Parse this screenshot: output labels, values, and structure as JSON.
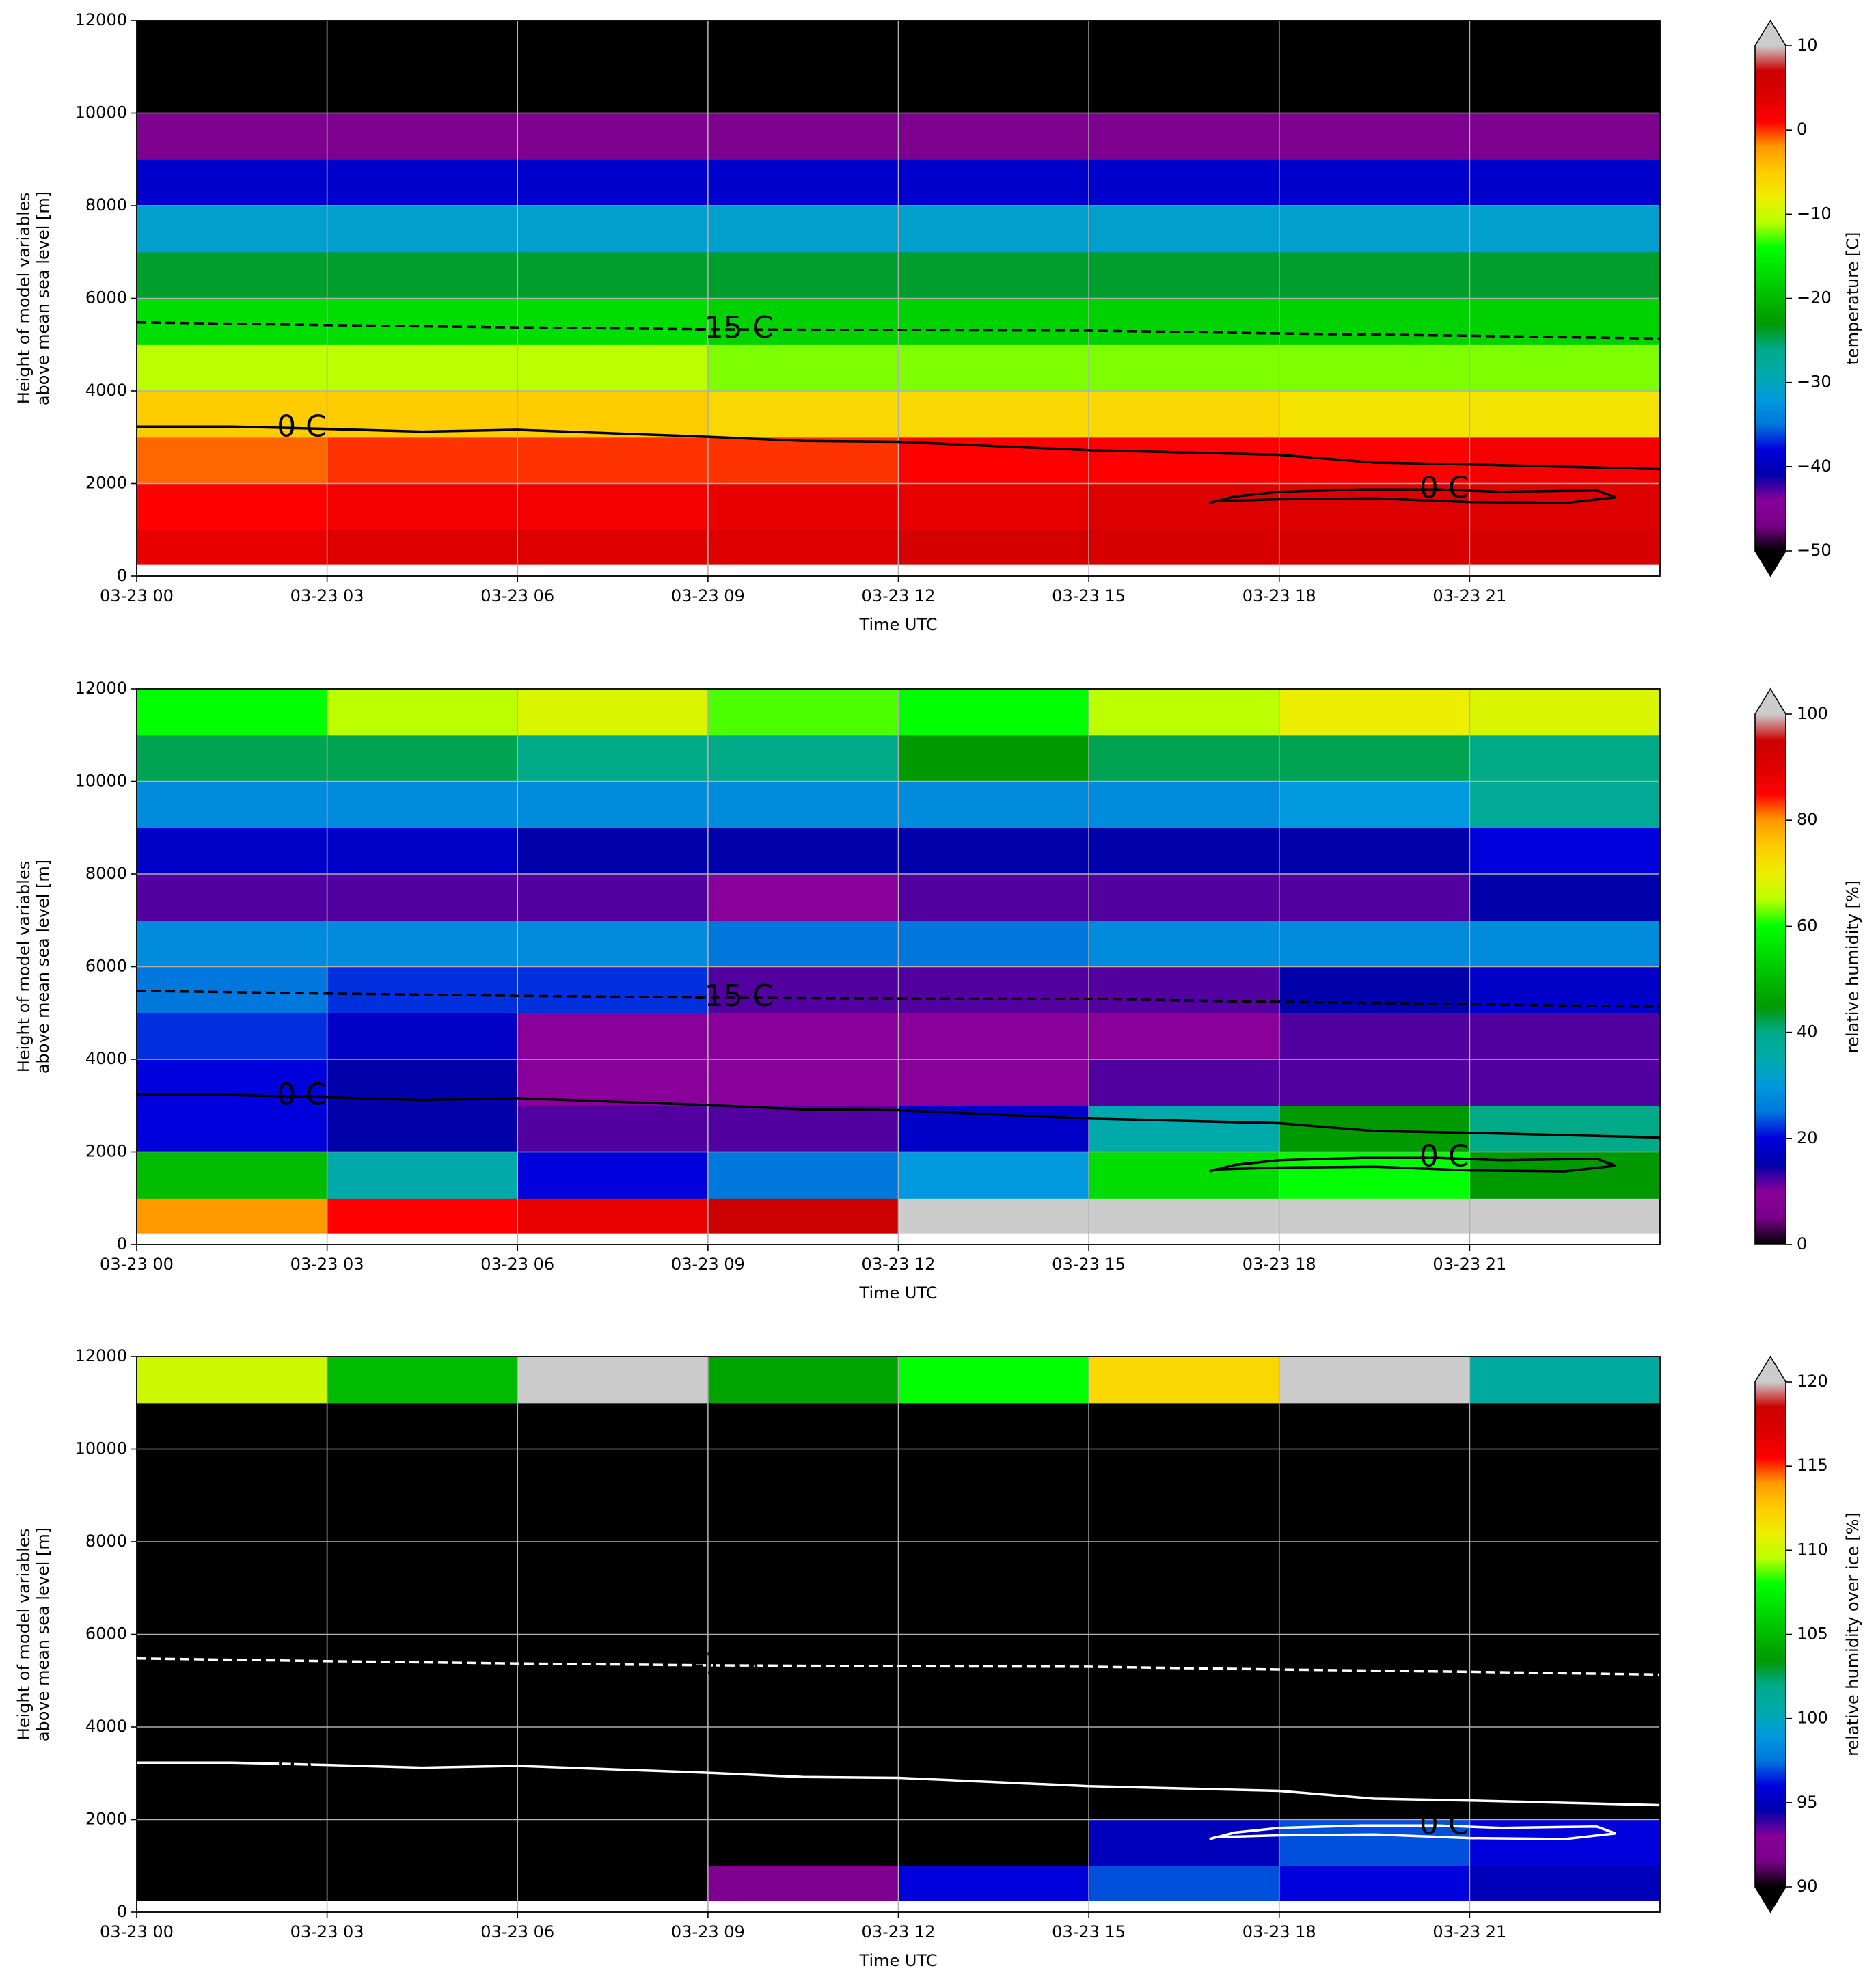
{
  "chart_data": [
    {
      "type": "heatmap",
      "xlabel": "Time UTC",
      "ylabel": [
        "Height of model variables",
        "above mean sea level [m]"
      ],
      "xlim": [
        0,
        24
      ],
      "xticks": [
        {
          "value": 0,
          "label": "03-23 00"
        },
        {
          "value": 3,
          "label": "03-23 03"
        },
        {
          "value": 6,
          "label": "03-23 06"
        },
        {
          "value": 9,
          "label": "03-23 09"
        },
        {
          "value": 12,
          "label": "03-23 12"
        },
        {
          "value": 15,
          "label": "03-23 15"
        },
        {
          "value": 18,
          "label": "03-23 18"
        },
        {
          "value": 21,
          "label": "03-23 21"
        }
      ],
      "ylim": [
        0,
        12000
      ],
      "yticks": [
        0,
        2000,
        4000,
        6000,
        8000,
        10000,
        12000
      ],
      "grid": true,
      "x_bins": [
        0,
        3,
        6,
        9,
        12,
        15,
        18,
        21,
        24
      ],
      "y_bins": [
        250,
        1000,
        2000,
        3000,
        4000,
        5000,
        6000,
        7000,
        8000,
        9000,
        10000,
        11000,
        12000
      ],
      "values": [
        [
          3,
          4,
          4,
          4,
          5,
          5,
          5,
          5
        ],
        [
          1,
          2,
          2,
          3,
          3,
          4,
          4,
          4
        ],
        [
          -1,
          0,
          0,
          0,
          1,
          1,
          1,
          2
        ],
        [
          -5,
          -5,
          -5,
          -6,
          -6,
          -6,
          -7,
          -7
        ],
        [
          -11,
          -11,
          -11,
          -12,
          -12,
          -12,
          -12,
          -12
        ],
        [
          -17,
          -17,
          -17,
          -18,
          -18,
          -18,
          -18,
          -18
        ],
        [
          -24,
          -24,
          -24,
          -24,
          -24,
          -24,
          -24,
          -24
        ],
        [
          -31,
          -31,
          -31,
          -31,
          -31,
          -31,
          -31,
          -31
        ],
        [
          -39,
          -39,
          -39,
          -39,
          -39,
          -39,
          -39,
          -39
        ],
        [
          -46,
          -46,
          -46,
          -46,
          -46,
          -46,
          -46,
          -46
        ],
        [
          -56,
          -56,
          -56,
          -56,
          -56,
          -56,
          -56,
          -56
        ],
        [
          -58,
          -58,
          -58,
          -58,
          -58,
          -58,
          -58,
          -58
        ]
      ],
      "colormap": [
        "#000000",
        "#780088",
        "#880099",
        "#0000aa",
        "#0000dd",
        "#0077dd",
        "#0099dd",
        "#00aaaa",
        "#00aa88",
        "#009900",
        "#00bb00",
        "#00dd00",
        "#00ff00",
        "#bbff00",
        "#eeee00",
        "#ffcc00",
        "#ff9900",
        "#ff0000",
        "#dd0000",
        "#cc0000",
        "#cccccc"
      ],
      "clim": [
        -50,
        10
      ],
      "cticks": [
        {
          "value": -50,
          "label": "−50"
        },
        {
          "value": -40,
          "label": "−40"
        },
        {
          "value": -30,
          "label": "−30"
        },
        {
          "value": -20,
          "label": "−20"
        },
        {
          "value": -10,
          "label": "−10"
        },
        0,
        10
      ],
      "colorbar_label": "temperature [C]",
      "extend": "both",
      "contour_color": "#000000",
      "contours": [
        {
          "label": "-15 C",
          "style": "dashed",
          "x": [
            0,
            3,
            6,
            9,
            12,
            15,
            18,
            21,
            24
          ],
          "y": [
            5480,
            5420,
            5370,
            5330,
            5310,
            5300,
            5240,
            5190,
            5130
          ]
        },
        {
          "label": "0 C",
          "style": "solid",
          "x": [
            0,
            1.5,
            3,
            4.5,
            6,
            9,
            10.5,
            12,
            15,
            18,
            19.5,
            21,
            24
          ],
          "y": [
            3230,
            3230,
            3180,
            3120,
            3160,
            3010,
            2920,
            2900,
            2720,
            2620,
            2450,
            2410,
            2310
          ]
        },
        {
          "label": "0 C",
          "style": "solid",
          "x": [
            16.9,
            17.3,
            18,
            19.3,
            20.5,
            21.5,
            23,
            23.3,
            22.5,
            21,
            19.5,
            18,
            17,
            16.9
          ],
          "y": [
            1580,
            1720,
            1820,
            1870,
            1870,
            1820,
            1850,
            1700,
            1580,
            1600,
            1680,
            1660,
            1620,
            1580
          ]
        }
      ]
    },
    {
      "type": "heatmap",
      "xlabel": "Time UTC",
      "ylabel": [
        "Height of model variables",
        "above mean sea level [m]"
      ],
      "xlim": [
        0,
        24
      ],
      "xticks": [
        {
          "value": 0,
          "label": "03-23 00"
        },
        {
          "value": 3,
          "label": "03-23 03"
        },
        {
          "value": 6,
          "label": "03-23 06"
        },
        {
          "value": 9,
          "label": "03-23 09"
        },
        {
          "value": 12,
          "label": "03-23 12"
        },
        {
          "value": 15,
          "label": "03-23 15"
        },
        {
          "value": 18,
          "label": "03-23 18"
        },
        {
          "value": 21,
          "label": "03-23 21"
        }
      ],
      "ylim": [
        0,
        12000
      ],
      "yticks": [
        0,
        2000,
        4000,
        6000,
        8000,
        10000,
        12000
      ],
      "grid": true,
      "x_bins": [
        0,
        3,
        6,
        9,
        12,
        15,
        18,
        21,
        24
      ],
      "y_bins": [
        250,
        1000,
        2000,
        3000,
        4000,
        5000,
        6000,
        7000,
        8000,
        9000,
        10000,
        11000,
        12000
      ],
      "values": [
        [
          80,
          85,
          88,
          95,
          100,
          100,
          101,
          101
        ],
        [
          50,
          35,
          20,
          25,
          30,
          55,
          60,
          45
        ],
        [
          20,
          15,
          12,
          12,
          18,
          35,
          45,
          40
        ],
        [
          20,
          15,
          10,
          10,
          10,
          12,
          12,
          12
        ],
        [
          22,
          18,
          10,
          10,
          10,
          10,
          12,
          12
        ],
        [
          25,
          22,
          22,
          12,
          12,
          12,
          15,
          18
        ],
        [
          28,
          28,
          28,
          25,
          25,
          28,
          28,
          28
        ],
        [
          12,
          12,
          12,
          10,
          12,
          12,
          12,
          15
        ],
        [
          18,
          18,
          15,
          15,
          15,
          15,
          15,
          20
        ],
        [
          28,
          28,
          28,
          28,
          28,
          28,
          30,
          38
        ],
        [
          42,
          42,
          40,
          40,
          45,
          42,
          42,
          40
        ],
        [
          60,
          65,
          68,
          62,
          60,
          65,
          70,
          68
        ]
      ],
      "colormap": [
        "#000000",
        "#780088",
        "#880099",
        "#0000aa",
        "#0000dd",
        "#0077dd",
        "#0099dd",
        "#00aaaa",
        "#00aa88",
        "#009900",
        "#00bb00",
        "#00dd00",
        "#00ff00",
        "#bbff00",
        "#eeee00",
        "#ffcc00",
        "#ff9900",
        "#ff0000",
        "#dd0000",
        "#cc0000",
        "#cccccc"
      ],
      "clim": [
        0,
        100
      ],
      "cticks": [
        0,
        20,
        40,
        60,
        80,
        100
      ],
      "colorbar_label": "relative humidity [%]",
      "extend": "max",
      "contour_color": "#000000",
      "contours": [
        {
          "label": "-15 C",
          "style": "dashed",
          "x": [
            0,
            3,
            6,
            9,
            12,
            15,
            18,
            21,
            24
          ],
          "y": [
            5480,
            5420,
            5370,
            5330,
            5310,
            5300,
            5240,
            5190,
            5130
          ]
        },
        {
          "label": "0 C",
          "style": "solid",
          "x": [
            0,
            1.5,
            3,
            4.5,
            6,
            9,
            10.5,
            12,
            15,
            18,
            19.5,
            21,
            24
          ],
          "y": [
            3230,
            3230,
            3180,
            3120,
            3160,
            3010,
            2920,
            2900,
            2720,
            2620,
            2450,
            2410,
            2310
          ]
        },
        {
          "label": "0 C",
          "style": "solid",
          "x": [
            16.9,
            17.3,
            18,
            19.3,
            20.5,
            21.5,
            23,
            23.3,
            22.5,
            21,
            19.5,
            18,
            17,
            16.9
          ],
          "y": [
            1580,
            1720,
            1820,
            1870,
            1870,
            1820,
            1850,
            1700,
            1580,
            1600,
            1680,
            1660,
            1620,
            1580
          ]
        }
      ]
    },
    {
      "type": "heatmap",
      "xlabel": "Time UTC",
      "ylabel": [
        "Height of model variables",
        "above mean sea level [m]"
      ],
      "xlim": [
        0,
        24
      ],
      "xticks": [
        {
          "value": 0,
          "label": "03-23 00"
        },
        {
          "value": 3,
          "label": "03-23 03"
        },
        {
          "value": 6,
          "label": "03-23 06"
        },
        {
          "value": 9,
          "label": "03-23 09"
        },
        {
          "value": 12,
          "label": "03-23 12"
        },
        {
          "value": 15,
          "label": "03-23 15"
        },
        {
          "value": 18,
          "label": "03-23 18"
        },
        {
          "value": 21,
          "label": "03-23 21"
        }
      ],
      "ylim": [
        0,
        12000
      ],
      "yticks": [
        0,
        2000,
        4000,
        6000,
        8000,
        10000,
        12000
      ],
      "grid": true,
      "x_bins": [
        0,
        3,
        6,
        9,
        12,
        15,
        18,
        21,
        24
      ],
      "y_bins": [
        250,
        1000,
        2000,
        3000,
        4000,
        5000,
        6000,
        7000,
        8000,
        9000,
        10000,
        11000,
        12000
      ],
      "values": [
        [
          85,
          85,
          88,
          92,
          96,
          97,
          96,
          95
        ],
        [
          70,
          72,
          80,
          85,
          90,
          95,
          97,
          96
        ],
        [
          60,
          60,
          62,
          65,
          65,
          68,
          70,
          70
        ],
        [
          55,
          55,
          55,
          55,
          55,
          55,
          55,
          55
        ],
        [
          55,
          55,
          55,
          55,
          55,
          55,
          55,
          55
        ],
        [
          55,
          55,
          55,
          55,
          55,
          55,
          55,
          55
        ],
        [
          55,
          55,
          55,
          55,
          55,
          55,
          55,
          55
        ],
        [
          55,
          55,
          55,
          55,
          55,
          55,
          55,
          55
        ],
        [
          60,
          60,
          60,
          60,
          60,
          60,
          60,
          60
        ],
        [
          65,
          65,
          65,
          65,
          65,
          65,
          65,
          65
        ],
        [
          80,
          85,
          82,
          80,
          80,
          80,
          80,
          80
        ],
        [
          110,
          105,
          121,
          104,
          108,
          112,
          121,
          101
        ]
      ],
      "colormap": [
        "#000000",
        "#780088",
        "#880099",
        "#0000aa",
        "#0000dd",
        "#0077dd",
        "#0099dd",
        "#00aaaa",
        "#00aa88",
        "#009900",
        "#00bb00",
        "#00dd00",
        "#00ff00",
        "#bbff00",
        "#eeee00",
        "#ffcc00",
        "#ff9900",
        "#ff0000",
        "#dd0000",
        "#cc0000",
        "#cccccc"
      ],
      "clim": [
        90,
        120
      ],
      "cticks": [
        90,
        95,
        100,
        105,
        110,
        115,
        120
      ],
      "colorbar_label": "relative humidity over ice [%]",
      "extend": "both",
      "contour_color": "#ffffff",
      "contours": [
        {
          "label": "-15 C",
          "style": "dashed",
          "x": [
            0,
            3,
            6,
            9,
            12,
            15,
            18,
            21,
            24
          ],
          "y": [
            5480,
            5420,
            5370,
            5330,
            5310,
            5300,
            5240,
            5190,
            5130
          ]
        },
        {
          "label": "0 C",
          "style": "solid",
          "x": [
            0,
            1.5,
            3,
            4.5,
            6,
            9,
            10.5,
            12,
            15,
            18,
            19.5,
            21,
            24
          ],
          "y": [
            3230,
            3230,
            3180,
            3120,
            3160,
            3010,
            2920,
            2900,
            2720,
            2620,
            2450,
            2410,
            2310
          ]
        },
        {
          "label": "0 C",
          "style": "solid",
          "x": [
            16.9,
            17.3,
            18,
            19.3,
            20.5,
            21.5,
            23,
            23.3,
            22.5,
            21,
            19.5,
            18,
            17,
            16.9
          ],
          "y": [
            1580,
            1720,
            1820,
            1870,
            1870,
            1820,
            1850,
            1700,
            1580,
            1600,
            1680,
            1660,
            1620,
            1580
          ]
        }
      ]
    }
  ]
}
